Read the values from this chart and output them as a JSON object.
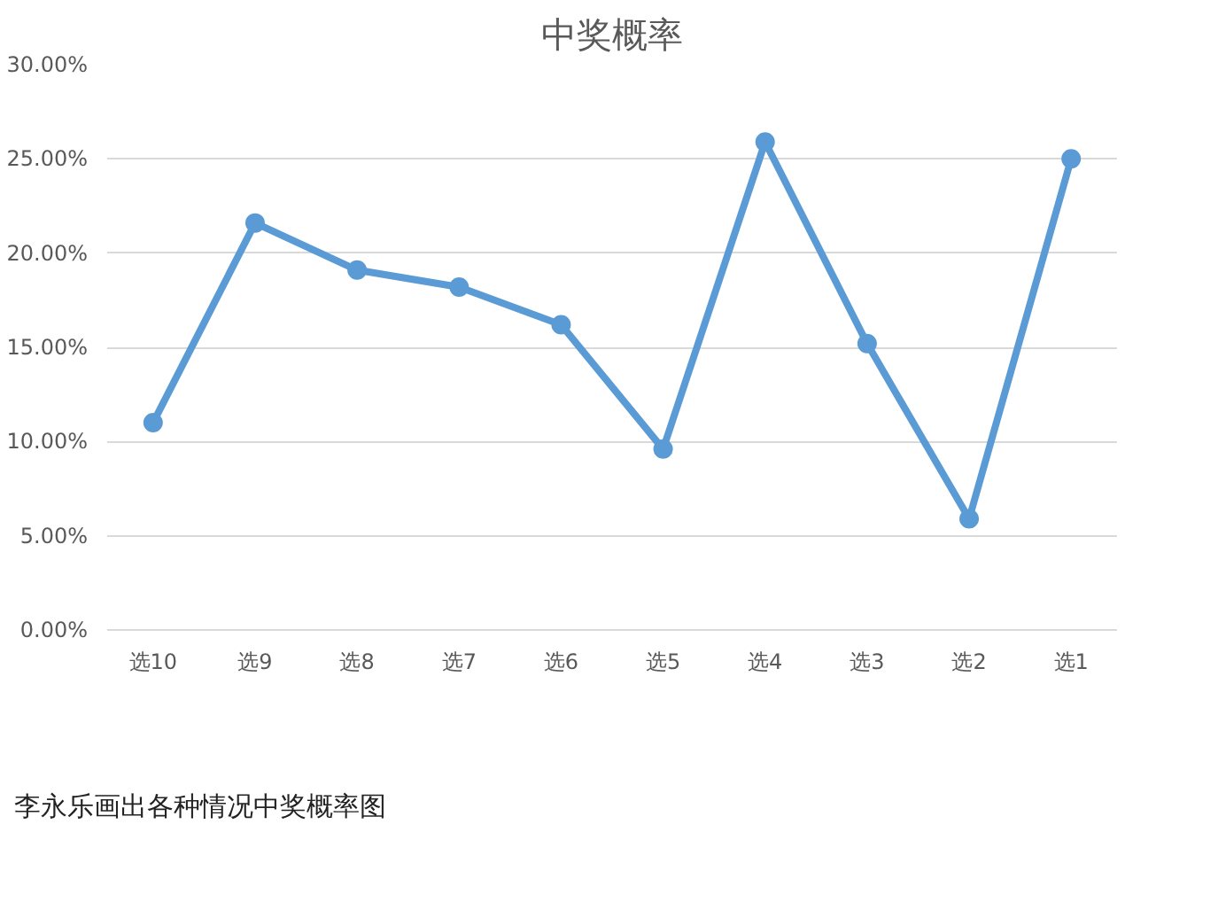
{
  "chart_data": {
    "type": "line",
    "title": "中奖概率",
    "categories": [
      "选10",
      "选9",
      "选8",
      "选7",
      "选6",
      "选5",
      "选4",
      "选3",
      "选2",
      "选1"
    ],
    "series": [
      {
        "color": "#5b9bd5",
        "values": [
          11.0,
          21.6,
          19.1,
          18.2,
          16.2,
          9.6,
          25.9,
          15.2,
          5.9,
          25.0
        ]
      }
    ],
    "ylim": [
      0,
      30
    ],
    "yticks": [
      {
        "value": 0,
        "label": "0.00%"
      },
      {
        "value": 5,
        "label": "5.00%"
      },
      {
        "value": 10,
        "label": "10.00%"
      },
      {
        "value": 15,
        "label": "15.00%"
      },
      {
        "value": 20,
        "label": "20.00%"
      },
      {
        "value": 25,
        "label": "25.00%"
      },
      {
        "value": 30,
        "label": "30.00%"
      }
    ],
    "grid": "y",
    "marker": "circle",
    "line_style": "solid",
    "annotations": [
      "李永乐画出各种情况中奖概率图"
    ]
  }
}
